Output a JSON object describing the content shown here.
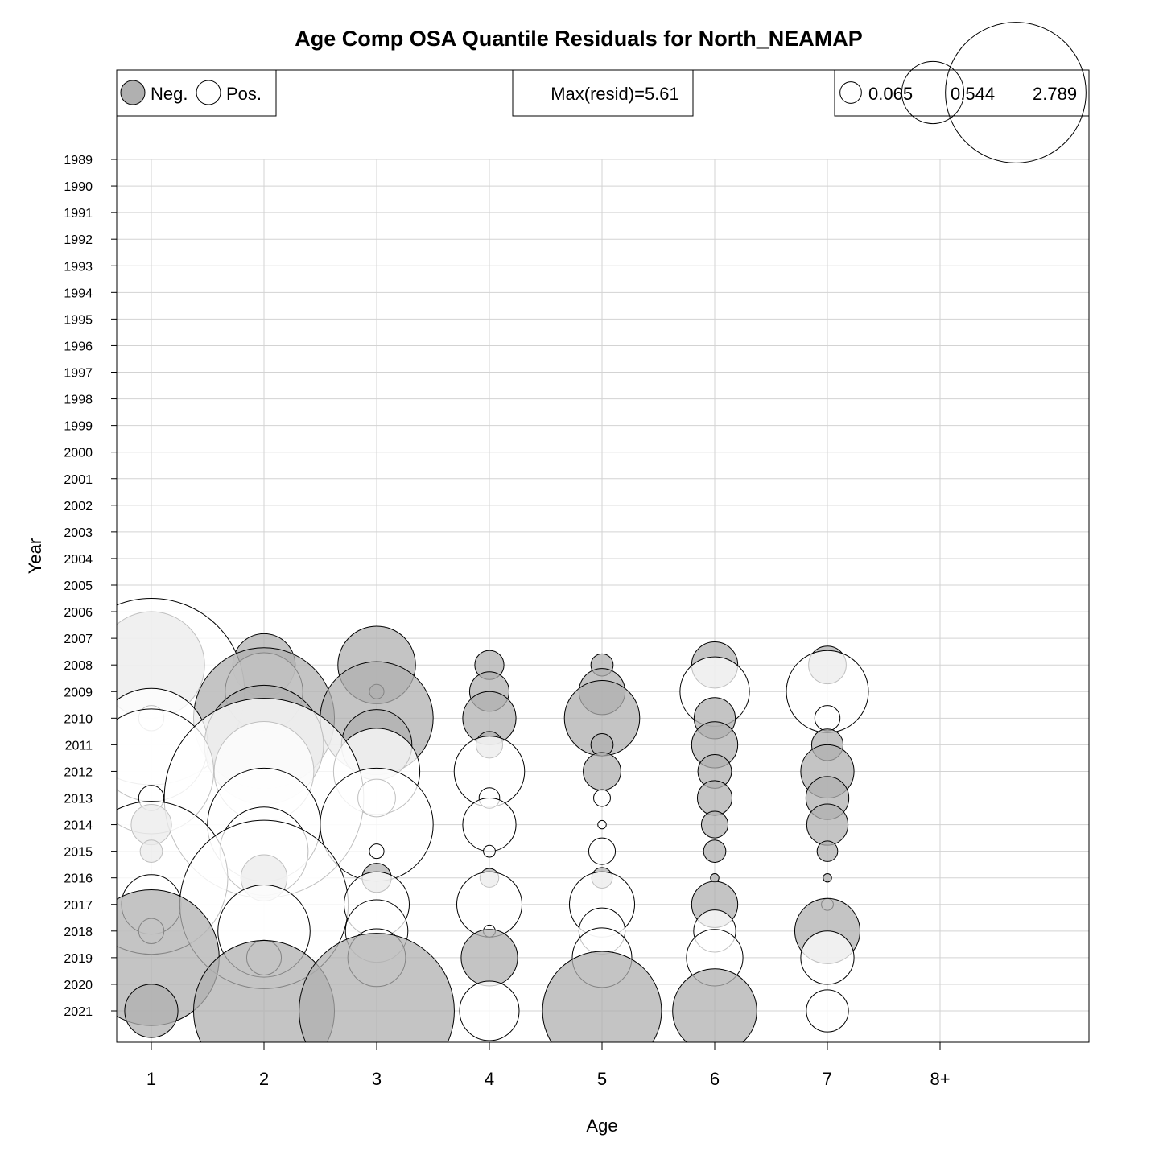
{
  "chart_data": {
    "type": "bubble",
    "title": "Age Comp OSA Quantile Residuals for North_NEAMAP",
    "xlabel": "Age",
    "ylabel": "Year",
    "ages": [
      "1",
      "2",
      "3",
      "4",
      "5",
      "6",
      "7",
      "8+"
    ],
    "years": [
      1989,
      1990,
      1991,
      1992,
      1993,
      1994,
      1995,
      1996,
      1997,
      1998,
      1999,
      2000,
      2001,
      2002,
      2003,
      2004,
      2005,
      2006,
      2007,
      2008,
      2009,
      2010,
      2011,
      2012,
      2013,
      2014,
      2015,
      2016,
      2017,
      2018,
      2019,
      2020,
      2021
    ],
    "grid": true,
    "colors": {
      "negative": "#b0b0b0",
      "positive": "#ffffff",
      "grid": "#d3d3d3",
      "outline": "#000000"
    },
    "legend": {
      "sign": {
        "neg_label": "Neg.",
        "pos_label": "Pos."
      },
      "max_label": "Max(resid)=5.61",
      "sizes": [
        0.065,
        0.544,
        2.789
      ],
      "size_labels": [
        "0.065",
        "0.544",
        "2.789"
      ]
    },
    "residuals": [
      {
        "year": 2008,
        "values": [
          -1.6,
          -0.55,
          -0.85,
          -0.12,
          -0.07,
          -0.3,
          -0.2,
          null
        ]
      },
      {
        "year": 2009,
        "values": [
          4.9,
          0.85,
          -0.03,
          -0.22,
          -0.3,
          0.68,
          0.95,
          null
        ]
      },
      {
        "year": 2010,
        "values": [
          0.09,
          -2.8,
          -1.8,
          -0.4,
          -0.8,
          -0.24,
          0.09,
          null
        ]
      },
      {
        "year": 2011,
        "values": [
          1.8,
          -2.0,
          -0.7,
          -0.1,
          -0.07,
          -0.3,
          -0.14,
          null
        ]
      },
      {
        "year": 2012,
        "values": [
          2.2,
          1.4,
          1.05,
          0.7,
          -0.2,
          -0.16,
          -0.4,
          null
        ]
      },
      {
        "year": 2013,
        "values": [
          0.09,
          5.61,
          0.2,
          0.06,
          0.04,
          -0.17,
          -0.26,
          null
        ]
      },
      {
        "year": 2014,
        "values": [
          -0.23,
          1.8,
          1.8,
          0.4,
          0.01,
          -0.1,
          -0.24,
          null
        ]
      },
      {
        "year": 2015,
        "values": [
          -0.07,
          1.1,
          0.03,
          0.02,
          0.1,
          -0.07,
          -0.06,
          null
        ]
      },
      {
        "year": 2016,
        "values": [
          3.3,
          -0.3,
          -0.12,
          -0.05,
          -0.06,
          -0.01,
          -0.01,
          null
        ]
      },
      {
        "year": 2017,
        "values": [
          0.5,
          4.0,
          0.6,
          0.6,
          0.6,
          -0.3,
          0.02,
          null
        ]
      },
      {
        "year": 2018,
        "values": [
          0.09,
          1.2,
          0.55,
          0.02,
          0.3,
          0.25,
          -0.6,
          null
        ]
      },
      {
        "year": 2019,
        "values": [
          -2.6,
          0.17,
          0.47,
          -0.45,
          0.5,
          0.45,
          0.4,
          null
        ]
      },
      {
        "year": 2021,
        "values": [
          -0.4,
          -2.8,
          -3.4,
          0.5,
          -2.0,
          -1.0,
          0.25,
          null
        ]
      }
    ]
  }
}
